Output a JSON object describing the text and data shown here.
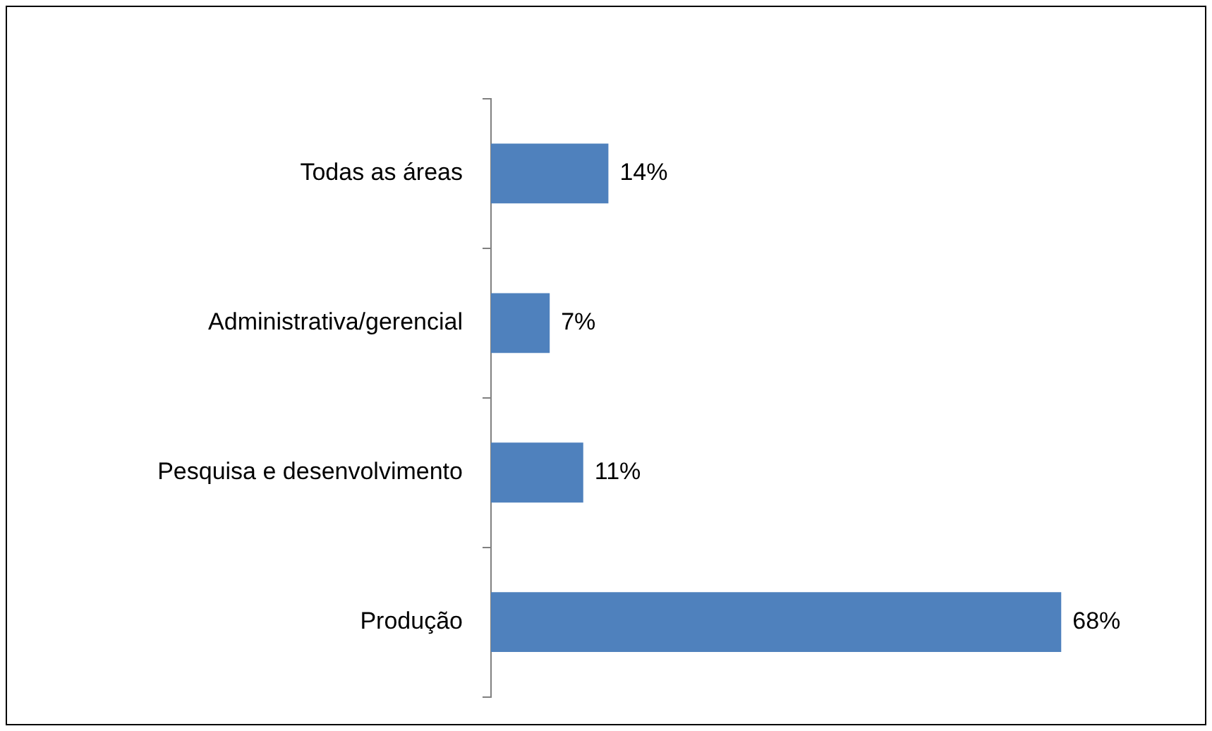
{
  "chart_data": {
    "type": "bar",
    "orientation": "horizontal",
    "categories": [
      "Todas as áreas",
      "Administrativa/gerencial",
      "Pesquisa e desenvolvimento",
      "Produção"
    ],
    "values": [
      14,
      7,
      11,
      68
    ],
    "color": "#4f81bd",
    "value_labels": [
      "14%",
      "7%",
      "11%",
      "68%"
    ],
    "legend": false
  }
}
